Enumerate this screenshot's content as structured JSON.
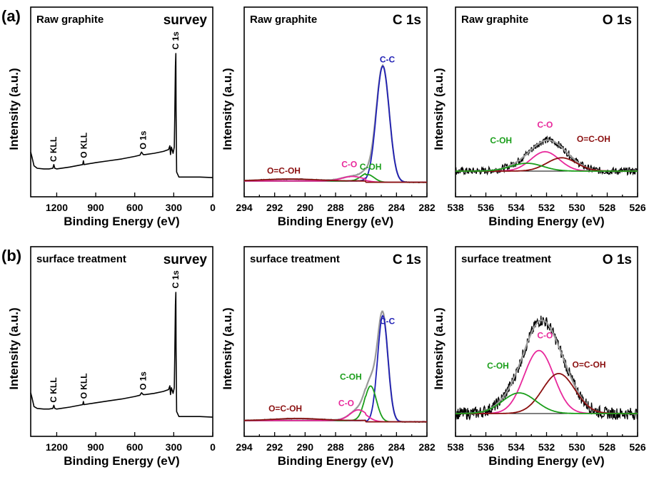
{
  "chart_data": [
    {
      "type": "line",
      "row": "a",
      "row_label": "(a)",
      "title": "Raw graphite",
      "tag": "survey",
      "xlabel": "Binding Energy (eV)",
      "ylabel": "Intensity (a.u.)",
      "xlim": [
        1400,
        0
      ],
      "xticks": [
        1200,
        900,
        600,
        300,
        0
      ],
      "series": [
        {
          "name": "survey",
          "color": "#000000",
          "x": [
            1400,
            1390,
            1375,
            1350,
            1300,
            1260,
            1230,
            1222,
            1215,
            1200,
            1100,
            1000,
            995,
            990,
            900,
            800,
            700,
            600,
            560,
            548,
            535,
            520,
            450,
            380,
            340,
            330,
            325,
            318,
            305,
            296,
            292,
            287,
            284,
            282,
            278,
            260,
            200,
            100,
            0
          ],
          "y": [
            0.21,
            0.17,
            0.1,
            0.08,
            0.075,
            0.075,
            0.08,
            0.11,
            0.08,
            0.075,
            0.09,
            0.11,
            0.14,
            0.11,
            0.125,
            0.14,
            0.155,
            0.175,
            0.185,
            0.21,
            0.19,
            0.19,
            0.2,
            0.215,
            0.23,
            0.26,
            0.19,
            0.25,
            0.2,
            0.25,
            0.5,
            0.9,
            1.0,
            0.55,
            0.05,
            0.01,
            0.01,
            0.01,
            0.005
          ]
        }
      ],
      "annotations": [
        {
          "text": "C KLL",
          "x": 1223,
          "y": 0.12
        },
        {
          "text": "O KLL",
          "x": 990,
          "y": 0.15
        },
        {
          "text": "O 1s",
          "x": 535,
          "y": 0.22
        },
        {
          "text": "C 1s",
          "x": 285,
          "y": 1.02
        }
      ]
    },
    {
      "type": "line",
      "row": "a",
      "title": "Raw graphite",
      "tag": "C 1s",
      "xlabel": "Binding Energy (eV)",
      "ylabel": "Intensity (a.u.)",
      "xlim": [
        294,
        282
      ],
      "xticks": [
        294,
        292,
        290,
        288,
        286,
        284,
        282
      ],
      "series": [
        {
          "name": "C-C",
          "color": "#1f1fb4",
          "center": 284.9,
          "fwhm": 1.0,
          "height": 0.9
        },
        {
          "name": "C-OH",
          "color": "#1a9e1a",
          "center": 285.9,
          "fwhm": 1.0,
          "height": 0.06
        },
        {
          "name": "C-O",
          "color": "#e8289b",
          "center": 286.9,
          "fwhm": 1.6,
          "height": 0.035
        },
        {
          "name": "O=C-OH",
          "color": "#8b1010",
          "center": 291.0,
          "fwhm": 4.0,
          "height": 0.015
        }
      ],
      "annotations": [
        {
          "text": "C-C",
          "x": 284.6,
          "y": 0.93,
          "color": "#1f1fb4"
        },
        {
          "text": "C-OH",
          "x": 285.7,
          "y": 0.1,
          "color": "#1a9e1a"
        },
        {
          "text": "C-O",
          "x": 287.1,
          "y": 0.12,
          "color": "#e8289b"
        },
        {
          "text": "O=C-OH",
          "x": 291.4,
          "y": 0.07,
          "color": "#8b1010"
        }
      ]
    },
    {
      "type": "line",
      "row": "a",
      "title": "Raw graphite",
      "tag": "O 1s",
      "xlabel": "Binding Energy (eV)",
      "ylabel": "Intensity (a.u.)",
      "xlim": [
        538,
        526
      ],
      "xticks": [
        538,
        536,
        534,
        532,
        530,
        528,
        526
      ],
      "series": [
        {
          "name": "C-O",
          "color": "#e8289b",
          "center": 532.1,
          "fwhm": 2.2,
          "height": 0.16
        },
        {
          "name": "O=C-OH",
          "color": "#8b1010",
          "center": 531.0,
          "fwhm": 2.3,
          "height": 0.11
        },
        {
          "name": "C-OH",
          "color": "#1a9e1a",
          "center": 533.3,
          "fwhm": 2.5,
          "height": 0.065
        }
      ],
      "annotations": [
        {
          "text": "C-O",
          "x": 532.1,
          "y": 0.36,
          "color": "#e8289b"
        },
        {
          "text": "C-OH",
          "x": 535.0,
          "y": 0.23,
          "color": "#1a9e1a"
        },
        {
          "text": "O=C-OH",
          "x": 528.9,
          "y": 0.24,
          "color": "#8b1010"
        }
      ]
    },
    {
      "type": "line",
      "row": "b",
      "row_label": "(b)",
      "title": "surface treatment",
      "tag": "survey",
      "xlabel": "Binding Energy (eV)",
      "ylabel": "Intensity (a.u.)",
      "xlim": [
        1400,
        0
      ],
      "xticks": [
        1200,
        900,
        600,
        300,
        0
      ],
      "series": [
        {
          "name": "survey",
          "color": "#000000",
          "x": [
            1400,
            1390,
            1375,
            1350,
            1300,
            1260,
            1230,
            1222,
            1215,
            1200,
            1100,
            1000,
            995,
            990,
            900,
            800,
            700,
            600,
            560,
            548,
            535,
            520,
            450,
            380,
            340,
            330,
            325,
            318,
            305,
            296,
            292,
            287,
            284,
            282,
            278,
            260,
            200,
            100,
            0
          ],
          "y": [
            0.2,
            0.16,
            0.09,
            0.075,
            0.07,
            0.07,
            0.075,
            0.1,
            0.075,
            0.07,
            0.085,
            0.105,
            0.13,
            0.105,
            0.12,
            0.135,
            0.15,
            0.17,
            0.18,
            0.2,
            0.185,
            0.185,
            0.195,
            0.21,
            0.225,
            0.255,
            0.185,
            0.24,
            0.195,
            0.24,
            0.5,
            0.9,
            1.0,
            0.55,
            0.05,
            0.01,
            0.01,
            0.01,
            0.005
          ]
        }
      ],
      "annotations": [
        {
          "text": "C KLL",
          "x": 1223,
          "y": 0.11
        },
        {
          "text": "O KLL",
          "x": 990,
          "y": 0.14
        },
        {
          "text": "O 1s",
          "x": 535,
          "y": 0.21
        },
        {
          "text": "C 1s",
          "x": 285,
          "y": 1.02
        }
      ]
    },
    {
      "type": "line",
      "row": "b",
      "title": "surface treatment",
      "tag": "C 1s",
      "xlabel": "Binding Energy (eV)",
      "ylabel": "Intensity (a.u.)",
      "xlim": [
        294,
        282
      ],
      "xticks": [
        294,
        292,
        290,
        288,
        286,
        284,
        282
      ],
      "series": [
        {
          "name": "C-C",
          "color": "#1f1fb4",
          "center": 284.9,
          "fwhm": 0.8,
          "height": 0.8
        },
        {
          "name": "C-OH",
          "color": "#1a9e1a",
          "center": 285.7,
          "fwhm": 0.9,
          "height": 0.27
        },
        {
          "name": "C-O",
          "color": "#e8289b",
          "center": 286.5,
          "fwhm": 1.3,
          "height": 0.08
        },
        {
          "name": "O=C-OH",
          "color": "#8b1010",
          "center": 290.5,
          "fwhm": 3.5,
          "height": 0.015
        }
      ],
      "annotations": [
        {
          "text": "C-C",
          "x": 284.6,
          "y": 0.74,
          "color": "#1f1fb4"
        },
        {
          "text": "C-OH",
          "x": 287.0,
          "y": 0.32,
          "color": "#1a9e1a"
        },
        {
          "text": "C-O",
          "x": 287.3,
          "y": 0.12,
          "color": "#e8289b"
        },
        {
          "text": "O=C-OH",
          "x": 291.3,
          "y": 0.08,
          "color": "#8b1010"
        }
      ]
    },
    {
      "type": "line",
      "row": "b",
      "title": "surface treatment",
      "tag": "O 1s",
      "xlabel": "Binding Energy (eV)",
      "ylabel": "Intensity (a.u.)",
      "xlim": [
        538,
        526
      ],
      "xticks": [
        538,
        536,
        534,
        532,
        530,
        528,
        526
      ],
      "series": [
        {
          "name": "C-O",
          "color": "#e8289b",
          "center": 532.5,
          "fwhm": 2.3,
          "height": 0.52
        },
        {
          "name": "O=C-OH",
          "color": "#8b1010",
          "center": 531.2,
          "fwhm": 2.5,
          "height": 0.33
        },
        {
          "name": "C-OH",
          "color": "#1a9e1a",
          "center": 533.8,
          "fwhm": 2.6,
          "height": 0.17
        }
      ],
      "annotations": [
        {
          "text": "C-O",
          "x": 532.1,
          "y": 0.62,
          "color": "#e8289b"
        },
        {
          "text": "C-OH",
          "x": 535.2,
          "y": 0.37,
          "color": "#1a9e1a"
        },
        {
          "text": "O=C-OH",
          "x": 529.2,
          "y": 0.38,
          "color": "#8b1010"
        }
      ]
    }
  ]
}
